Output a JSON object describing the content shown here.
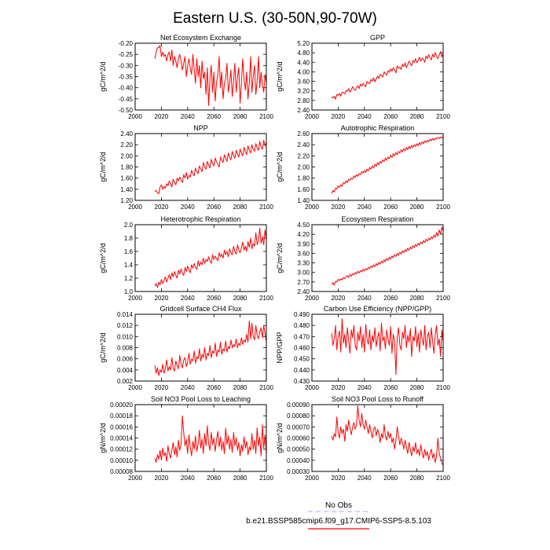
{
  "title": "Eastern U.S. (30-50N,90-70W)",
  "legend": {
    "obs_label": "No Obs",
    "obs_color": "#aaaaff",
    "model_label": "b.e21.BSSP585cmip6.f09_g17.CMIP6-SSP5-8.5.103",
    "model_color": "#ff0000"
  },
  "line_color": "#ff0000",
  "chart_data": [
    {
      "type": "line",
      "title": "Net Ecosystem Exchange",
      "ylabel": "gC/m^2/d",
      "xlim": [
        2000,
        2100
      ],
      "xticks": [
        2000,
        2020,
        2040,
        2060,
        2080,
        2100
      ],
      "ylim": [
        -0.5,
        -0.2
      ],
      "yticks": [
        -0.5,
        -0.45,
        -0.4,
        -0.35,
        -0.3,
        -0.25,
        -0.2
      ],
      "ydec": 2,
      "x_start": 2015,
      "values": [
        -0.27,
        -0.24,
        -0.22,
        -0.22,
        -0.21,
        -0.26,
        -0.24,
        -0.26,
        -0.25,
        -0.28,
        -0.25,
        -0.24,
        -0.28,
        -0.23,
        -0.3,
        -0.26,
        -0.28,
        -0.31,
        -0.27,
        -0.25,
        -0.28,
        -0.32,
        -0.29,
        -0.26,
        -0.35,
        -0.3,
        -0.27,
        -0.31,
        -0.34,
        -0.25,
        -0.32,
        -0.38,
        -0.27,
        -0.35,
        -0.3,
        -0.4,
        -0.28,
        -0.36,
        -0.33,
        -0.43,
        -0.31,
        -0.48,
        -0.36,
        -0.3,
        -0.42,
        -0.33,
        -0.46,
        -0.38,
        -0.34,
        -0.26,
        -0.4,
        -0.33,
        -0.45,
        -0.38,
        -0.36,
        -0.29,
        -0.42,
        -0.38,
        -0.32,
        -0.44,
        -0.37,
        -0.29,
        -0.42,
        -0.35,
        -0.31,
        -0.47,
        -0.38,
        -0.27,
        -0.36,
        -0.41,
        -0.33,
        -0.45,
        -0.38,
        -0.26,
        -0.42,
        -0.35,
        -0.3,
        -0.43,
        -0.37,
        -0.26,
        -0.4,
        -0.33,
        -0.39,
        -0.42,
        -0.34,
        -0.38
      ]
    },
    {
      "type": "line",
      "title": "GPP",
      "ylabel": "gC/m^2/d",
      "xlim": [
        2000,
        2100
      ],
      "xticks": [
        2000,
        2020,
        2040,
        2060,
        2080,
        2100
      ],
      "ylim": [
        2.4,
        5.2
      ],
      "yticks": [
        2.4,
        2.8,
        3.2,
        3.6,
        4.0,
        4.4,
        4.8,
        5.2
      ],
      "ydec": 2,
      "x_start": 2015,
      "values": [
        2.95,
        2.9,
        2.98,
        2.85,
        3.05,
        3.02,
        3.1,
        2.98,
        3.15,
        3.12,
        3.08,
        3.22,
        3.18,
        3.3,
        3.15,
        3.25,
        3.38,
        3.28,
        3.22,
        3.35,
        3.42,
        3.3,
        3.48,
        3.4,
        3.52,
        3.45,
        3.38,
        3.6,
        3.55,
        3.5,
        3.68,
        3.62,
        3.75,
        3.58,
        3.7,
        3.82,
        3.72,
        3.9,
        3.85,
        3.78,
        4.0,
        3.92,
        3.86,
        4.05,
        3.98,
        4.12,
        4.02,
        4.18,
        4.08,
        3.95,
        4.25,
        4.15,
        4.2,
        4.1,
        4.32,
        4.22,
        4.38,
        4.18,
        4.3,
        4.45,
        4.35,
        4.25,
        4.48,
        4.4,
        4.55,
        4.38,
        4.5,
        4.62,
        4.45,
        4.58,
        4.52,
        4.4,
        4.66,
        4.55,
        4.72,
        4.6,
        4.5,
        4.74,
        4.62,
        4.8,
        4.65,
        4.55,
        4.7,
        4.85,
        4.62,
        4.78
      ]
    },
    {
      "type": "line",
      "title": "NPP",
      "ylabel": "gC/m^2/d",
      "xlim": [
        2000,
        2100
      ],
      "xticks": [
        2000,
        2020,
        2040,
        2060,
        2080,
        2100
      ],
      "ylim": [
        1.2,
        2.4
      ],
      "yticks": [
        1.2,
        1.4,
        1.6,
        1.8,
        2.0,
        2.2,
        2.4
      ],
      "ydec": 2,
      "x_start": 2015,
      "values": [
        1.36,
        1.38,
        1.33,
        1.32,
        1.44,
        1.48,
        1.4,
        1.45,
        1.42,
        1.5,
        1.46,
        1.55,
        1.5,
        1.44,
        1.58,
        1.52,
        1.48,
        1.6,
        1.55,
        1.62,
        1.57,
        1.52,
        1.66,
        1.6,
        1.7,
        1.58,
        1.65,
        1.62,
        1.74,
        1.68,
        1.64,
        1.78,
        1.72,
        1.68,
        1.82,
        1.76,
        1.72,
        1.88,
        1.8,
        1.76,
        1.9,
        1.84,
        1.78,
        1.94,
        1.86,
        1.82,
        1.96,
        1.9,
        1.85,
        1.8,
        1.98,
        1.92,
        1.88,
        2.02,
        1.95,
        1.9,
        2.05,
        1.98,
        1.93,
        2.08,
        2.0,
        1.96,
        2.1,
        2.03,
        1.98,
        2.12,
        2.05,
        2.0,
        2.15,
        2.08,
        2.02,
        2.18,
        2.1,
        2.05,
        2.2,
        2.12,
        2.08,
        2.22,
        2.14,
        2.1,
        2.26,
        2.16,
        2.12,
        2.28,
        2.18,
        2.24
      ]
    },
    {
      "type": "line",
      "title": "Autotrophic Respiration",
      "ylabel": "gC/m^2/d",
      "xlim": [
        2000,
        2100
      ],
      "xticks": [
        2000,
        2020,
        2040,
        2060,
        2080,
        2100
      ],
      "ylim": [
        1.4,
        2.6
      ],
      "yticks": [
        1.4,
        1.6,
        1.8,
        2.0,
        2.2,
        2.4,
        2.6
      ],
      "ydec": 2,
      "x_start": 2015,
      "values": [
        1.52,
        1.58,
        1.55,
        1.62,
        1.6,
        1.66,
        1.63,
        1.68,
        1.65,
        1.72,
        1.7,
        1.75,
        1.72,
        1.78,
        1.76,
        1.8,
        1.78,
        1.84,
        1.81,
        1.86,
        1.83,
        1.88,
        1.86,
        1.92,
        1.89,
        1.94,
        1.9,
        1.96,
        1.93,
        1.99,
        1.96,
        2.02,
        1.98,
        2.05,
        2.01,
        2.08,
        2.04,
        2.1,
        2.07,
        2.13,
        2.1,
        2.16,
        2.12,
        2.18,
        2.15,
        2.21,
        2.17,
        2.24,
        2.2,
        2.26,
        2.22,
        2.28,
        2.25,
        2.31,
        2.27,
        2.33,
        2.29,
        2.35,
        2.31,
        2.37,
        2.33,
        2.39,
        2.35,
        2.4,
        2.37,
        2.42,
        2.38,
        2.44,
        2.4,
        2.45,
        2.42,
        2.47,
        2.44,
        2.48,
        2.45,
        2.5,
        2.47,
        2.51,
        2.48,
        2.52,
        2.5,
        2.53,
        2.51,
        2.54,
        2.52,
        2.55
      ]
    },
    {
      "type": "line",
      "title": "Heterotrophic Respiration",
      "ylabel": "gC/m^2/d",
      "xlim": [
        2000,
        2100
      ],
      "xticks": [
        2000,
        2020,
        2040,
        2060,
        2080,
        2100
      ],
      "ylim": [
        1.0,
        2.0
      ],
      "yticks": [
        1.0,
        1.2,
        1.4,
        1.6,
        1.8,
        2.0
      ],
      "ydec": 1,
      "x_start": 2015,
      "values": [
        1.08,
        1.12,
        1.06,
        1.14,
        1.1,
        1.18,
        1.12,
        1.16,
        1.22,
        1.14,
        1.2,
        1.25,
        1.18,
        1.28,
        1.22,
        1.3,
        1.24,
        1.2,
        1.32,
        1.26,
        1.34,
        1.28,
        1.24,
        1.36,
        1.3,
        1.38,
        1.32,
        1.28,
        1.4,
        1.35,
        1.42,
        1.36,
        1.33,
        1.46,
        1.38,
        1.44,
        1.4,
        1.5,
        1.42,
        1.48,
        1.45,
        1.52,
        1.46,
        1.42,
        1.55,
        1.48,
        1.53,
        1.5,
        1.46,
        1.58,
        1.52,
        1.56,
        1.5,
        1.62,
        1.55,
        1.6,
        1.52,
        1.64,
        1.58,
        1.55,
        1.68,
        1.6,
        1.56,
        1.7,
        1.62,
        1.58,
        1.66,
        1.74,
        1.62,
        1.68,
        1.6,
        1.75,
        1.66,
        1.8,
        1.64,
        1.72,
        1.68,
        1.88,
        1.7,
        1.76,
        1.95,
        1.72,
        1.82,
        1.7,
        1.92,
        1.78
      ]
    },
    {
      "type": "line",
      "title": "Ecosystem Respiration",
      "ylabel": "gC/m^2/d",
      "xlim": [
        2000,
        2100
      ],
      "xticks": [
        2000,
        2020,
        2040,
        2060,
        2080,
        2100
      ],
      "ylim": [
        2.4,
        4.5
      ],
      "yticks": [
        2.4,
        2.7,
        3.0,
        3.3,
        3.6,
        3.9,
        4.2,
        4.5
      ],
      "ydec": 2,
      "x_start": 2015,
      "values": [
        2.62,
        2.68,
        2.6,
        2.72,
        2.7,
        2.78,
        2.74,
        2.8,
        2.76,
        2.84,
        2.8,
        2.86,
        2.9,
        2.84,
        2.94,
        2.88,
        2.96,
        2.92,
        3.0,
        2.95,
        3.04,
        2.98,
        3.06,
        3.02,
        3.1,
        3.04,
        3.12,
        3.08,
        3.16,
        3.12,
        3.2,
        3.15,
        3.24,
        3.18,
        3.28,
        3.22,
        3.32,
        3.26,
        3.36,
        3.3,
        3.4,
        3.34,
        3.44,
        3.38,
        3.48,
        3.42,
        3.52,
        3.46,
        3.56,
        3.5,
        3.6,
        3.54,
        3.64,
        3.58,
        3.68,
        3.62,
        3.72,
        3.66,
        3.76,
        3.7,
        3.8,
        3.74,
        3.84,
        3.78,
        3.88,
        3.82,
        3.92,
        3.86,
        3.96,
        3.9,
        4.0,
        3.94,
        4.04,
        3.98,
        4.08,
        4.02,
        4.12,
        4.06,
        4.18,
        4.1,
        4.25,
        4.14,
        4.34,
        4.2,
        4.42,
        4.3
      ]
    },
    {
      "type": "line",
      "title": "Gridcell Surface CH4 Flux",
      "ylabel": "gC/m^2/d",
      "xlim": [
        2000,
        2100
      ],
      "xticks": [
        2000,
        2020,
        2040,
        2060,
        2080,
        2100
      ],
      "ylim": [
        0.002,
        0.014
      ],
      "yticks": [
        0.002,
        0.004,
        0.006,
        0.008,
        0.01,
        0.012,
        0.014
      ],
      "ydec": 3,
      "x_start": 2015,
      "values": [
        0.0048,
        0.0034,
        0.0044,
        0.003,
        0.004,
        0.0036,
        0.005,
        0.0034,
        0.0042,
        0.0058,
        0.0038,
        0.0046,
        0.004,
        0.0062,
        0.0044,
        0.0038,
        0.0056,
        0.0048,
        0.0042,
        0.0066,
        0.005,
        0.0044,
        0.0058,
        0.0062,
        0.0046,
        0.0054,
        0.007,
        0.005,
        0.006,
        0.0056,
        0.0074,
        0.0052,
        0.0064,
        0.006,
        0.0078,
        0.0056,
        0.0068,
        0.0062,
        0.008,
        0.0058,
        0.007,
        0.0066,
        0.0084,
        0.0062,
        0.0074,
        0.007,
        0.0088,
        0.0064,
        0.0076,
        0.0072,
        0.009,
        0.0068,
        0.0078,
        0.0074,
        0.0092,
        0.0072,
        0.0082,
        0.0078,
        0.0094,
        0.008,
        0.0086,
        0.0082,
        0.0096,
        0.008,
        0.0088,
        0.0084,
        0.0098,
        0.0086,
        0.0094,
        0.009,
        0.0104,
        0.009,
        0.0128,
        0.0096,
        0.0124,
        0.01,
        0.0094,
        0.012,
        0.0102,
        0.0096,
        0.0108,
        0.0116,
        0.0098,
        0.012,
        0.0106,
        0.009
      ]
    },
    {
      "type": "line",
      "title": "Carbon Use Efficiency (NPP/GPP)",
      "ylabel": "NPP/GPP",
      "xlim": [
        2000,
        2100
      ],
      "xticks": [
        2000,
        2020,
        2040,
        2060,
        2080,
        2100
      ],
      "ylim": [
        0.43,
        0.49
      ],
      "yticks": [
        0.43,
        0.44,
        0.45,
        0.46,
        0.47,
        0.48,
        0.49
      ],
      "ydec": 3,
      "x_start": 2015,
      "values": [
        0.473,
        0.462,
        0.468,
        0.48,
        0.458,
        0.47,
        0.475,
        0.456,
        0.486,
        0.464,
        0.472,
        0.46,
        0.478,
        0.466,
        0.455,
        0.476,
        0.469,
        0.48,
        0.462,
        0.458,
        0.474,
        0.466,
        0.479,
        0.46,
        0.472,
        0.456,
        0.481,
        0.468,
        0.463,
        0.476,
        0.458,
        0.471,
        0.465,
        0.478,
        0.461,
        0.469,
        0.474,
        0.457,
        0.482,
        0.466,
        0.47,
        0.459,
        0.476,
        0.468,
        0.462,
        0.479,
        0.455,
        0.472,
        0.466,
        0.436,
        0.47,
        0.478,
        0.462,
        0.458,
        0.474,
        0.468,
        0.48,
        0.46,
        0.471,
        0.465,
        0.477,
        0.452,
        0.47,
        0.466,
        0.479,
        0.461,
        0.473,
        0.456,
        0.476,
        0.468,
        0.462,
        0.48,
        0.458,
        0.47,
        0.474,
        0.46,
        0.478,
        0.466,
        0.455,
        0.472,
        0.48,
        0.462,
        0.468,
        0.452,
        0.476,
        0.465
      ]
    },
    {
      "type": "line",
      "title": "Soil NO3 Pool Loss to Leaching",
      "ylabel": "gN/m^2/d",
      "xlim": [
        2000,
        2100
      ],
      "xticks": [
        2000,
        2020,
        2040,
        2060,
        2080,
        2100
      ],
      "ylim": [
        8e-05,
        0.0002
      ],
      "yticks": [
        8e-05,
        0.0001,
        0.00012,
        0.00014,
        0.00016,
        0.00018,
        0.0002
      ],
      "ydec": 5,
      "x_start": 2015,
      "values": [
        0.000104,
        9.6e-05,
        0.00011,
        0.000102,
        0.000118,
        0.0001,
        0.000122,
        0.000108,
        0.000114,
        9.8e-05,
        0.000126,
        0.000112,
        0.000104,
        0.000118,
        0.000132,
        0.00011,
        0.000124,
        0.000106,
        0.000136,
        0.000118,
        0.000128,
        0.00018,
        0.00015,
        0.000126,
        0.000138,
        0.000112,
        0.000146,
        0.000124,
        0.000108,
        0.000134,
        0.00012,
        0.000144,
        0.000116,
        0.00013,
        0.000154,
        0.000122,
        0.000138,
        0.000112,
        0.000148,
        0.000126,
        0.000162,
        0.00013,
        0.000118,
        0.00015,
        0.000128,
        0.00014,
        0.000116,
        0.000136,
        0.000152,
        0.000124,
        0.000142,
        0.000118,
        0.000134,
        0.000112,
        0.000158,
        0.000128,
        0.000144,
        0.00012,
        0.000138,
        0.000114,
        0.00015,
        0.000126,
        0.00014,
        0.000118,
        0.000132,
        0.000108,
        0.000128,
        0.000116,
        0.000142,
        0.000122,
        0.000134,
        0.00011,
        0.000124,
        0.000118,
        0.000148,
        0.00012,
        0.000136,
        0.000112,
        0.000158,
        0.000126,
        0.000142,
        0.000108,
        0.000164,
        0.000122,
        0.000146,
        0.000112
      ]
    },
    {
      "type": "line",
      "title": "Soil NO3 Pool Loss to Runoff",
      "ylabel": "gN/m^2/d",
      "xlim": [
        2000,
        2100
      ],
      "xticks": [
        2000,
        2020,
        2040,
        2060,
        2080,
        2100
      ],
      "ylim": [
        0.0003,
        0.0009
      ],
      "yticks": [
        0.0003,
        0.0004,
        0.0005,
        0.0006,
        0.0007,
        0.0008,
        0.0009
      ],
      "ydec": 5,
      "x_start": 2015,
      "values": [
        0.00062,
        0.00058,
        0.00064,
        0.00061,
        0.00079,
        0.00065,
        0.0006,
        0.0007,
        0.00064,
        0.00068,
        0.00057,
        0.00072,
        0.00066,
        0.00076,
        0.00069,
        0.00063,
        0.0007,
        0.00074,
        0.00068,
        0.00072,
        0.00089,
        0.00076,
        0.0007,
        0.00082,
        0.00072,
        0.00068,
        0.00076,
        0.0007,
        0.00064,
        0.00072,
        0.00066,
        0.0006,
        0.00068,
        0.0007,
        0.00062,
        0.00068,
        0.00064,
        0.00056,
        0.00064,
        0.0006,
        0.00072,
        0.00062,
        0.00058,
        0.00066,
        0.0006,
        0.00064,
        0.00056,
        0.0006,
        0.0005,
        0.00058,
        0.0007,
        0.00062,
        0.00054,
        0.0006,
        0.00056,
        0.0005,
        0.00058,
        0.00052,
        0.00046,
        0.00056,
        0.0005,
        0.00044,
        0.00052,
        0.00048,
        0.00056,
        0.00046,
        0.0005,
        0.00044,
        0.00054,
        0.00046,
        0.00042,
        0.0005,
        0.00044,
        0.00048,
        0.0004,
        0.00046,
        0.0005,
        0.00042,
        0.00046,
        0.00038,
        0.00044,
        0.0006,
        0.00046,
        0.00042,
        0.00038,
        0.00035
      ]
    }
  ]
}
